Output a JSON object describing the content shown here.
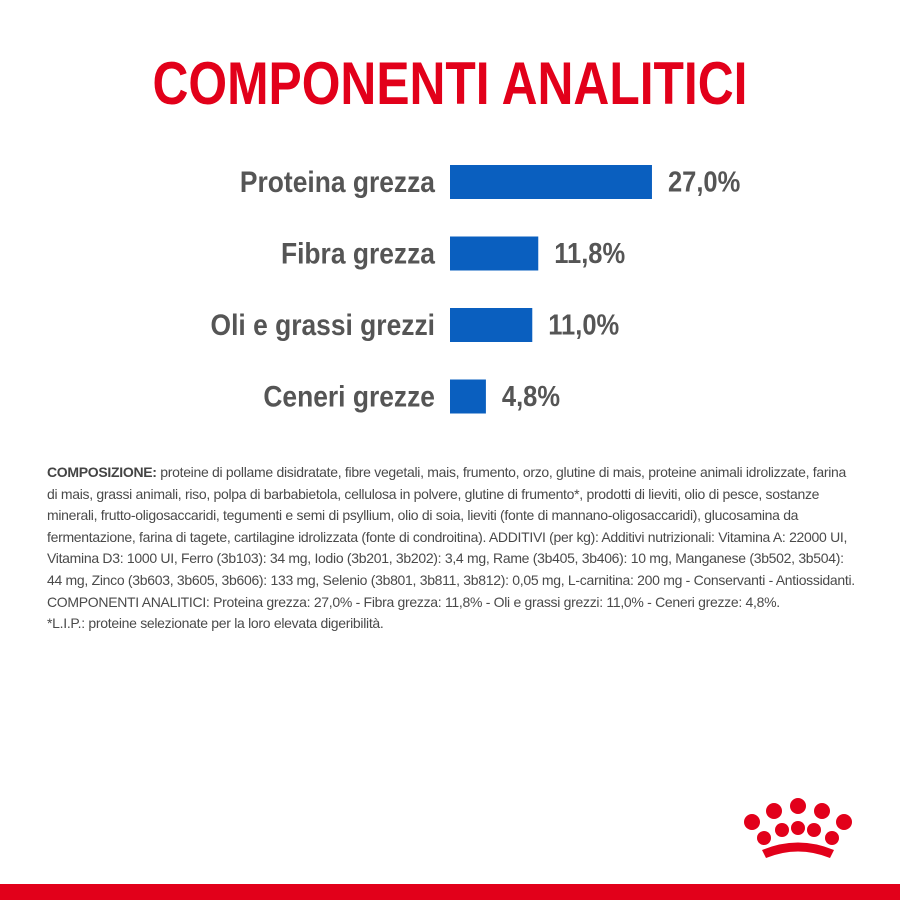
{
  "chart_data": {
    "type": "bar",
    "orientation": "horizontal",
    "title": "COMPONENTI ANALITICI",
    "categories": [
      "Proteina grezza",
      "Fibra grezza",
      "Oli e grassi grezzi",
      "Ceneri grezze"
    ],
    "values": [
      27.0,
      11.8,
      11.0,
      4.8
    ],
    "value_labels": [
      "27,0%",
      "11,8%",
      "11,0%",
      "4,8%"
    ],
    "color": "#0a5fbf"
  },
  "composition": {
    "label": "COMPOSIZIONE:",
    "text": "proteine di pollame disidratate, fibre vegetali, mais, frumento, orzo, glutine di mais, proteine animali idrolizzate, farina di mais, grassi animali, riso, polpa di barbabietola, cellulosa in polvere, glutine di frumento*, prodotti di lieviti, olio di pesce, sostanze minerali, frutto-oligosaccaridi, tegumenti e semi di psyllium, olio di soia, lieviti (fonte di mannano-oligosaccaridi), glucosamina da fermentazione, farina di tagete, cartilagine idrolizzata (fonte di condroitina). ADDITIVI (per kg): Additivi nutrizionali: Vitamina A: 22000 UI, Vitamina D3: 1000 UI, Ferro (3b103): 34 mg, Iodio (3b201, 3b202): 3,4 mg, Rame (3b405, 3b406): 10 mg, Manganese (3b502, 3b504): 44 mg, Zinco (3b603, 3b605, 3b606): 133 mg, Selenio (3b801, 3b811, 3b812): 0,05 mg, L-carnitina: 200 mg - Conservanti - Antiossidanti. COMPONENTI ANALITICI: Proteina grezza: 27,0% - Fibra grezza: 11,8% - Oli e grassi grezzi: 11,0% - Ceneri grezze: 4,8%.",
    "note": "*L.I.P.: proteine selezionate per la loro elevata digeribilità."
  }
}
